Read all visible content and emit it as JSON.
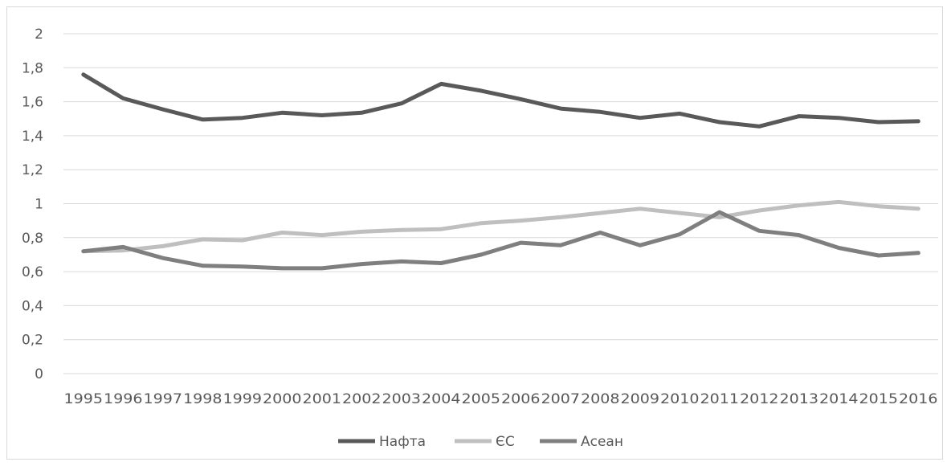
{
  "chart_data": {
    "type": "line",
    "title": "",
    "xlabel": "",
    "ylabel": "",
    "ylim": [
      0,
      2
    ],
    "y_ticks": [
      "0",
      "0,2",
      "0,4",
      "0,6",
      "0,8",
      "1",
      "1,2",
      "1,4",
      "1,6",
      "1,8",
      "2"
    ],
    "categories": [
      "1995",
      "1996",
      "1997",
      "1998",
      "1999",
      "2000",
      "2001",
      "2002",
      "2003",
      "2004",
      "2005",
      "2006",
      "2007",
      "2008",
      "2009",
      "2010",
      "2011",
      "2012",
      "2013",
      "2014",
      "2015",
      "2016"
    ],
    "grid": "horizontal",
    "legend_position": "bottom",
    "series": [
      {
        "name": "Нафта",
        "color": "#595959",
        "values": [
          1.76,
          1.62,
          1.555,
          1.495,
          1.505,
          1.535,
          1.52,
          1.535,
          1.59,
          1.705,
          1.665,
          1.615,
          1.56,
          1.54,
          1.505,
          1.53,
          1.48,
          1.455,
          1.515,
          1.505,
          1.48,
          1.485
        ]
      },
      {
        "name": "ЄС",
        "color": "#bfbfbf",
        "values": [
          0.72,
          0.725,
          0.75,
          0.79,
          0.785,
          0.83,
          0.815,
          0.835,
          0.845,
          0.85,
          0.885,
          0.9,
          0.92,
          0.945,
          0.97,
          0.945,
          0.92,
          0.96,
          0.99,
          1.01,
          0.985,
          0.97
        ]
      },
      {
        "name": "Асеан",
        "color": "#7f7f7f",
        "values": [
          0.72,
          0.745,
          0.68,
          0.635,
          0.63,
          0.62,
          0.62,
          0.645,
          0.66,
          0.65,
          0.7,
          0.77,
          0.755,
          0.83,
          0.755,
          0.82,
          0.95,
          0.84,
          0.815,
          0.74,
          0.695,
          0.71
        ]
      }
    ]
  }
}
